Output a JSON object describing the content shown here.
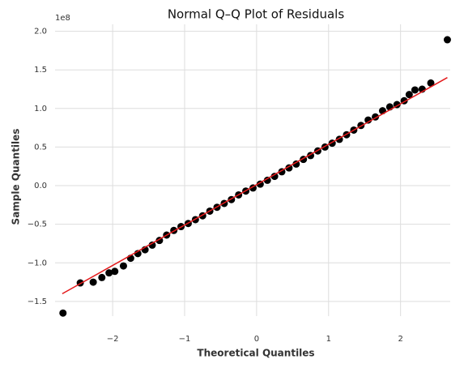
{
  "chart_data": {
    "type": "scatter",
    "title": "Normal Q–Q Plot of Residuals",
    "xlabel": "Theoretical Quantiles",
    "ylabel": "Sample Quantiles",
    "y_offset_label": "1e8",
    "x": [
      -2.69,
      -2.45,
      -2.27,
      -2.15,
      -2.05,
      -1.97,
      -1.85,
      -1.75,
      -1.65,
      -1.55,
      -1.45,
      -1.35,
      -1.25,
      -1.15,
      -1.05,
      -0.95,
      -0.85,
      -0.75,
      -0.65,
      -0.55,
      -0.45,
      -0.35,
      -0.25,
      -0.15,
      -0.05,
      0.05,
      0.15,
      0.25,
      0.35,
      0.45,
      0.55,
      0.65,
      0.75,
      0.85,
      0.95,
      1.05,
      1.15,
      1.25,
      1.35,
      1.45,
      1.55,
      1.65,
      1.75,
      1.85,
      1.95,
      2.05,
      2.12,
      2.2,
      2.3,
      2.42,
      2.65
    ],
    "values": [
      -1.65,
      -1.26,
      -1.25,
      -1.19,
      -1.13,
      -1.11,
      -1.04,
      -0.94,
      -0.88,
      -0.83,
      -0.77,
      -0.71,
      -0.64,
      -0.58,
      -0.53,
      -0.49,
      -0.44,
      -0.39,
      -0.33,
      -0.28,
      -0.23,
      -0.18,
      -0.12,
      -0.07,
      -0.03,
      0.02,
      0.07,
      0.12,
      0.18,
      0.23,
      0.28,
      0.34,
      0.39,
      0.45,
      0.5,
      0.55,
      0.6,
      0.66,
      0.72,
      0.78,
      0.85,
      0.89,
      0.97,
      1.02,
      1.05,
      1.1,
      1.18,
      1.24,
      1.25,
      1.33,
      1.89
    ],
    "color": "#000000",
    "fit_line": {
      "x": [
        -2.7,
        2.65
      ],
      "values": [
        -1.4,
        1.4
      ],
      "color": "#e41a1c"
    },
    "xlim": [
      -2.8,
      2.69
    ],
    "ylim": [
      -1.69,
      2.09
    ],
    "xticks": [
      {
        "value": -2,
        "label": "−2"
      },
      {
        "value": -1,
        "label": "−1"
      },
      0,
      1,
      2
    ],
    "yticks": [
      {
        "value": -1.5,
        "label": "−1.5"
      },
      {
        "value": -1.0,
        "label": "−1.0"
      },
      {
        "value": -0.5,
        "label": "−0.5"
      },
      {
        "value": 0,
        "label": "0.0"
      },
      {
        "value": 0.5,
        "label": "0.5"
      },
      {
        "value": 1.0,
        "label": "1.0"
      },
      {
        "value": 1.5,
        "label": "1.5"
      },
      {
        "value": 2.0,
        "label": "2.0"
      }
    ],
    "grid": true
  }
}
